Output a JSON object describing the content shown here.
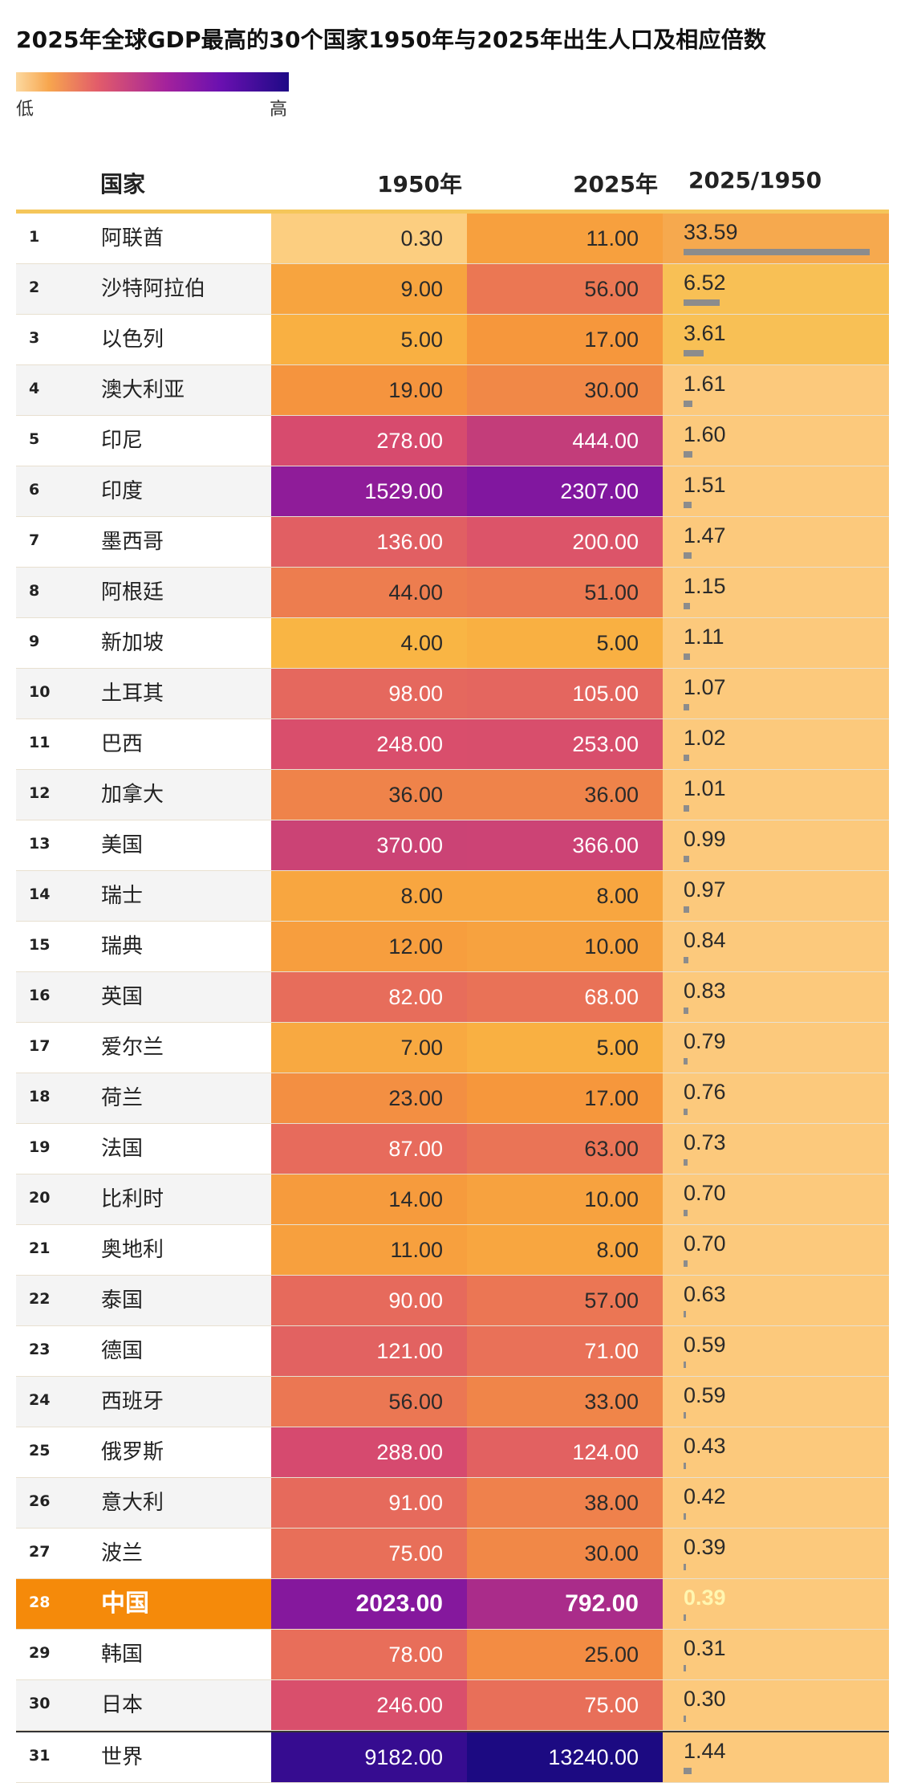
{
  "title": "2025年全球GDP最高的30个国家1950年与2025年出生人口及相应倍数",
  "legend": {
    "low": "低",
    "high": "高"
  },
  "colors": {
    "highlight": "#f58a0a",
    "ratio_bar": "#8c8c8c"
  },
  "chart_data": {
    "type": "table",
    "columns": [
      "",
      "国家",
      "1950年",
      "2025年",
      "2025/1950"
    ],
    "scale": "heatmap",
    "rows": [
      {
        "rank": "1",
        "country": "阿联酋",
        "y1950": "0.30",
        "y2025": "11.00",
        "ratio": "33.59"
      },
      {
        "rank": "2",
        "country": "沙特阿拉伯",
        "y1950": "9.00",
        "y2025": "56.00",
        "ratio": "6.52"
      },
      {
        "rank": "3",
        "country": "以色列",
        "y1950": "5.00",
        "y2025": "17.00",
        "ratio": "3.61"
      },
      {
        "rank": "4",
        "country": "澳大利亚",
        "y1950": "19.00",
        "y2025": "30.00",
        "ratio": "1.61"
      },
      {
        "rank": "5",
        "country": "印尼",
        "y1950": "278.00",
        "y2025": "444.00",
        "ratio": "1.60"
      },
      {
        "rank": "6",
        "country": "印度",
        "y1950": "1529.00",
        "y2025": "2307.00",
        "ratio": "1.51"
      },
      {
        "rank": "7",
        "country": "墨西哥",
        "y1950": "136.00",
        "y2025": "200.00",
        "ratio": "1.47"
      },
      {
        "rank": "8",
        "country": "阿根廷",
        "y1950": "44.00",
        "y2025": "51.00",
        "ratio": "1.15"
      },
      {
        "rank": "9",
        "country": "新加坡",
        "y1950": "4.00",
        "y2025": "5.00",
        "ratio": "1.11"
      },
      {
        "rank": "10",
        "country": "土耳其",
        "y1950": "98.00",
        "y2025": "105.00",
        "ratio": "1.07"
      },
      {
        "rank": "11",
        "country": "巴西",
        "y1950": "248.00",
        "y2025": "253.00",
        "ratio": "1.02"
      },
      {
        "rank": "12",
        "country": "加拿大",
        "y1950": "36.00",
        "y2025": "36.00",
        "ratio": "1.01"
      },
      {
        "rank": "13",
        "country": "美国",
        "y1950": "370.00",
        "y2025": "366.00",
        "ratio": "0.99"
      },
      {
        "rank": "14",
        "country": "瑞士",
        "y1950": "8.00",
        "y2025": "8.00",
        "ratio": "0.97"
      },
      {
        "rank": "15",
        "country": "瑞典",
        "y1950": "12.00",
        "y2025": "10.00",
        "ratio": "0.84"
      },
      {
        "rank": "16",
        "country": "英国",
        "y1950": "82.00",
        "y2025": "68.00",
        "ratio": "0.83"
      },
      {
        "rank": "17",
        "country": "爱尔兰",
        "y1950": "7.00",
        "y2025": "5.00",
        "ratio": "0.79"
      },
      {
        "rank": "18",
        "country": "荷兰",
        "y1950": "23.00",
        "y2025": "17.00",
        "ratio": "0.76"
      },
      {
        "rank": "19",
        "country": "法国",
        "y1950": "87.00",
        "y2025": "63.00",
        "ratio": "0.73"
      },
      {
        "rank": "20",
        "country": "比利时",
        "y1950": "14.00",
        "y2025": "10.00",
        "ratio": "0.70"
      },
      {
        "rank": "21",
        "country": "奥地利",
        "y1950": "11.00",
        "y2025": "8.00",
        "ratio": "0.70"
      },
      {
        "rank": "22",
        "country": "泰国",
        "y1950": "90.00",
        "y2025": "57.00",
        "ratio": "0.63"
      },
      {
        "rank": "23",
        "country": "德国",
        "y1950": "121.00",
        "y2025": "71.00",
        "ratio": "0.59"
      },
      {
        "rank": "24",
        "country": "西班牙",
        "y1950": "56.00",
        "y2025": "33.00",
        "ratio": "0.59"
      },
      {
        "rank": "25",
        "country": "俄罗斯",
        "y1950": "288.00",
        "y2025": "124.00",
        "ratio": "0.43"
      },
      {
        "rank": "26",
        "country": "意大利",
        "y1950": "91.00",
        "y2025": "38.00",
        "ratio": "0.42"
      },
      {
        "rank": "27",
        "country": "波兰",
        "y1950": "75.00",
        "y2025": "30.00",
        "ratio": "0.39"
      },
      {
        "rank": "28",
        "country": "中国",
        "y1950": "2023.00",
        "y2025": "792.00",
        "ratio": "0.39",
        "highlight": true
      },
      {
        "rank": "29",
        "country": "韩国",
        "y1950": "78.00",
        "y2025": "25.00",
        "ratio": "0.31"
      },
      {
        "rank": "30",
        "country": "日本",
        "y1950": "246.00",
        "y2025": "75.00",
        "ratio": "0.30"
      },
      {
        "rank": "31",
        "country": "世界",
        "y1950": "9182.00",
        "y2025": "13240.00",
        "ratio": "1.44",
        "world": true
      }
    ]
  }
}
